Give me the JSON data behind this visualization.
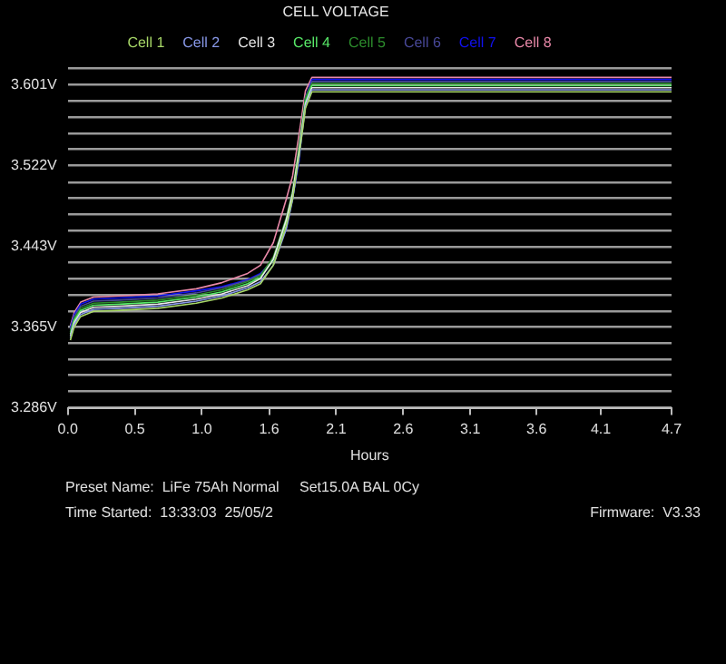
{
  "chart_data": {
    "type": "line",
    "title": "CELL VOLTAGE",
    "xlabel": "Hours",
    "legend": "top",
    "grid": "y",
    "marker": "none",
    "line_style": "solid",
    "x": [
      0.02,
      0.05,
      0.1,
      0.2,
      0.4,
      0.7,
      1.0,
      1.2,
      1.4,
      1.5,
      1.6,
      1.7,
      1.75,
      1.8,
      1.85,
      1.9,
      2.2,
      2.7,
      3.2,
      3.7,
      4.2,
      4.7
    ],
    "series": [
      {
        "name": "Cell 1",
        "color": "#a8d868",
        "values": [
          3.352,
          3.365,
          3.375,
          3.38,
          3.381,
          3.383,
          3.388,
          3.393,
          3.401,
          3.407,
          3.425,
          3.463,
          3.49,
          3.531,
          3.578,
          3.594,
          3.594,
          3.594,
          3.594,
          3.594,
          3.594,
          3.594
        ]
      },
      {
        "name": "Cell 2",
        "color": "#8898e8",
        "values": [
          3.354,
          3.367,
          3.377,
          3.382,
          3.383,
          3.385,
          3.39,
          3.395,
          3.403,
          3.409,
          3.425,
          3.46,
          3.489,
          3.531,
          3.58,
          3.596,
          3.596,
          3.596,
          3.596,
          3.596,
          3.596,
          3.596
        ]
      },
      {
        "name": "Cell 3",
        "color": "#e8e8e8",
        "values": [
          3.356,
          3.369,
          3.379,
          3.384,
          3.385,
          3.387,
          3.392,
          3.397,
          3.405,
          3.412,
          3.431,
          3.469,
          3.495,
          3.536,
          3.582,
          3.598,
          3.598,
          3.598,
          3.598,
          3.598,
          3.598,
          3.598
        ]
      },
      {
        "name": "Cell 4",
        "color": "#58e868",
        "values": [
          3.358,
          3.371,
          3.381,
          3.386,
          3.387,
          3.389,
          3.394,
          3.399,
          3.407,
          3.413,
          3.43,
          3.467,
          3.494,
          3.536,
          3.584,
          3.6,
          3.6,
          3.6,
          3.6,
          3.6,
          3.6,
          3.6
        ]
      },
      {
        "name": "Cell 5",
        "color": "#2c8c2c",
        "values": [
          3.36,
          3.373,
          3.383,
          3.388,
          3.389,
          3.391,
          3.396,
          3.401,
          3.409,
          3.415,
          3.433,
          3.471,
          3.498,
          3.541,
          3.588,
          3.602,
          3.602,
          3.602,
          3.602,
          3.602,
          3.602,
          3.602
        ]
      },
      {
        "name": "Cell 6",
        "color": "#484898",
        "values": [
          3.362,
          3.375,
          3.385,
          3.39,
          3.391,
          3.393,
          3.398,
          3.403,
          3.41,
          3.416,
          3.431,
          3.463,
          3.493,
          3.537,
          3.588,
          3.604,
          3.604,
          3.604,
          3.604,
          3.604,
          3.604,
          3.604
        ]
      },
      {
        "name": "Cell 7",
        "color": "#1010f0",
        "values": [
          3.364,
          3.377,
          3.387,
          3.392,
          3.393,
          3.395,
          3.4,
          3.404,
          3.411,
          3.417,
          3.43,
          3.46,
          3.49,
          3.526,
          3.588,
          3.606,
          3.606,
          3.606,
          3.606,
          3.606,
          3.606,
          3.606
        ]
      },
      {
        "name": "Cell 8",
        "color": "#e888a8",
        "values": [
          3.366,
          3.379,
          3.389,
          3.394,
          3.395,
          3.397,
          3.402,
          3.408,
          3.417,
          3.425,
          3.447,
          3.489,
          3.512,
          3.552,
          3.595,
          3.608,
          3.608,
          3.608,
          3.608,
          3.608,
          3.608,
          3.608
        ]
      }
    ],
    "xlim": [
      0,
      4.7
    ],
    "xticks": [
      {
        "value": 0,
        "label": "0.0"
      },
      {
        "value": 0.522,
        "label": "0.5"
      },
      {
        "value": 1.044,
        "label": "1.0"
      },
      {
        "value": 1.567,
        "label": "1.6"
      },
      {
        "value": 2.089,
        "label": "2.1"
      },
      {
        "value": 2.611,
        "label": "2.6"
      },
      {
        "value": 3.133,
        "label": "3.1"
      },
      {
        "value": 3.649,
        "label": "3.6"
      },
      {
        "value": 4.149,
        "label": "4.1"
      },
      {
        "value": 4.7,
        "label": "4.7"
      }
    ],
    "ylim": [
      3.286,
      3.617
    ],
    "yticks": [
      {
        "value": 3.286,
        "label": "3.286V"
      },
      {
        "value": 3.302,
        "label": null
      },
      {
        "value": 3.318,
        "label": null
      },
      {
        "value": 3.333,
        "label": null
      },
      {
        "value": 3.349,
        "label": null
      },
      {
        "value": 3.365,
        "label": "3.365V"
      },
      {
        "value": 3.38,
        "label": null
      },
      {
        "value": 3.396,
        "label": null
      },
      {
        "value": 3.412,
        "label": null
      },
      {
        "value": 3.428,
        "label": null
      },
      {
        "value": 3.443,
        "label": "3.443V"
      },
      {
        "value": 3.459,
        "label": null
      },
      {
        "value": 3.475,
        "label": null
      },
      {
        "value": 3.491,
        "label": null
      },
      {
        "value": 3.506,
        "label": null
      },
      {
        "value": 3.522,
        "label": "3.522V"
      },
      {
        "value": 3.538,
        "label": null
      },
      {
        "value": 3.553,
        "label": null
      },
      {
        "value": 3.569,
        "label": null
      },
      {
        "value": 3.585,
        "label": null
      },
      {
        "value": 3.601,
        "label": "3.601V"
      },
      {
        "value": 3.617,
        "label": null
      }
    ],
    "annotations": [
      "Preset Name:  LiFe 75Ah Normal",
      "Set15.0A BAL 0Cy",
      "Time Started:  13:33:03  25/05/2",
      "Firmware:  V3.33"
    ]
  }
}
